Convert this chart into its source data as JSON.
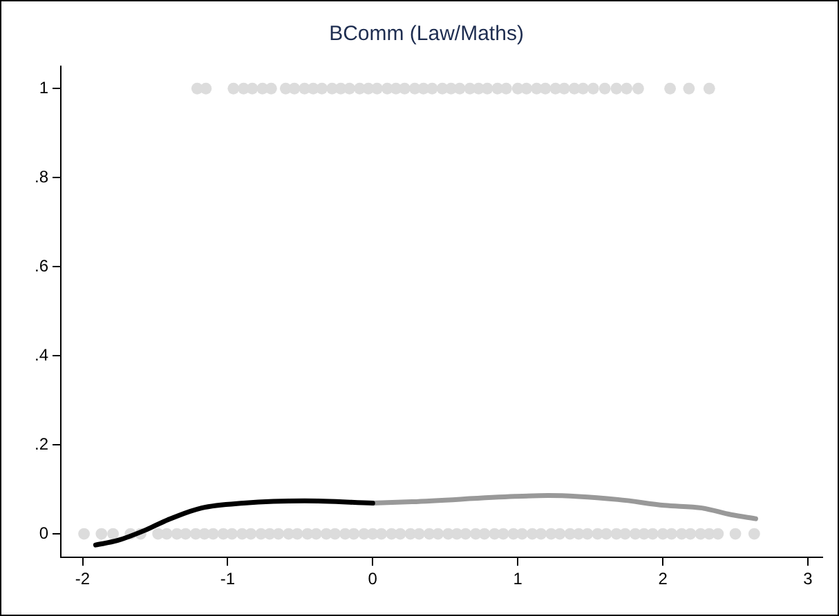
{
  "chart_data": {
    "type": "scatter",
    "title": "BComm (Law/Maths)",
    "xlim": [
      -2.15,
      3.1
    ],
    "xticks": [
      -2,
      -1,
      0,
      1,
      2,
      3
    ],
    "ylim": [
      -0.053,
      1.05
    ],
    "yticks": [
      0,
      {
        "value": 0.2,
        "label": ".2"
      },
      {
        "value": 0.4,
        "label": ".4"
      },
      {
        "value": 0.6,
        "label": ".6"
      },
      {
        "value": 0.8,
        "label": ".8"
      },
      1
    ],
    "grid": false,
    "legend": false,
    "series": [
      {
        "marker": "circle",
        "color": "#dcdcdc",
        "x": [
          -1.21,
          -1.15,
          -0.96,
          -0.89,
          -0.83,
          -0.76,
          -0.7,
          -0.6,
          -0.54,
          -0.47,
          -0.41,
          -0.35,
          -0.28,
          -0.22,
          -0.16,
          -0.09,
          -0.03,
          0.03,
          0.1,
          0.16,
          0.22,
          0.29,
          0.35,
          0.41,
          0.48,
          0.54,
          0.6,
          0.67,
          0.73,
          0.79,
          0.86,
          0.92,
          1.0,
          1.06,
          1.13,
          1.19,
          1.26,
          1.32,
          1.39,
          1.45,
          1.52,
          1.6,
          1.68,
          1.75,
          1.83,
          2.05,
          2.18,
          2.32
        ],
        "values": [
          1,
          1,
          1,
          1,
          1,
          1,
          1,
          1,
          1,
          1,
          1,
          1,
          1,
          1,
          1,
          1,
          1,
          1,
          1,
          1,
          1,
          1,
          1,
          1,
          1,
          1,
          1,
          1,
          1,
          1,
          1,
          1,
          1,
          1,
          1,
          1,
          1,
          1,
          1,
          1,
          1,
          1,
          1,
          1,
          1,
          1,
          1,
          1
        ]
      },
      {
        "marker": "circle",
        "color": "#dcdcdc",
        "x": [
          -1.99,
          -1.87,
          -1.79,
          -1.67,
          -1.6,
          -1.48,
          -1.42,
          -1.35,
          -1.29,
          -1.22,
          -1.16,
          -1.1,
          -1.03,
          -0.97,
          -0.9,
          -0.84,
          -0.77,
          -0.71,
          -0.65,
          -0.58,
          -0.52,
          -0.45,
          -0.39,
          -0.32,
          -0.26,
          -0.19,
          -0.13,
          -0.06,
          0.0,
          0.06,
          0.13,
          0.19,
          0.26,
          0.32,
          0.39,
          0.45,
          0.52,
          0.58,
          0.64,
          0.71,
          0.77,
          0.84,
          0.9,
          0.97,
          1.03,
          1.1,
          1.16,
          1.23,
          1.29,
          1.36,
          1.42,
          1.48,
          1.55,
          1.61,
          1.68,
          1.74,
          1.81,
          1.87,
          1.93,
          2.0,
          2.06,
          2.13,
          2.19,
          2.26,
          2.32,
          2.38,
          2.5,
          2.63
        ],
        "values": [
          0,
          0,
          0,
          0,
          0,
          0,
          0,
          0,
          0,
          0,
          0,
          0,
          0,
          0,
          0,
          0,
          0,
          0,
          0,
          0,
          0,
          0,
          0,
          0,
          0,
          0,
          0,
          0,
          0,
          0,
          0,
          0,
          0,
          0,
          0,
          0,
          0,
          0,
          0,
          0,
          0,
          0,
          0,
          0,
          0,
          0,
          0,
          0,
          0,
          0,
          0,
          0,
          0,
          0,
          0,
          0,
          0,
          0,
          0,
          0,
          0,
          0,
          0,
          0,
          0,
          0,
          0,
          0
        ]
      },
      {
        "type": "line",
        "marker": "none",
        "line_style": "solid",
        "color": "#000000",
        "x": [
          -1.91,
          -1.76,
          -1.57,
          -1.41,
          -1.18,
          -0.89,
          -0.47,
          0
        ],
        "values": [
          -0.025,
          -0.015,
          0.008,
          0.032,
          0.058,
          0.069,
          0.074,
          0.069
        ]
      },
      {
        "type": "line",
        "marker": "none",
        "line_style": "solid",
        "color": "#999999",
        "x": [
          0,
          0.27,
          0.98,
          1.21,
          1.69,
          2.01,
          2.27,
          2.47,
          2.64
        ],
        "values": [
          0.069,
          0.072,
          0.084,
          0.086,
          0.077,
          0.064,
          0.058,
          0.043,
          0.034
        ]
      }
    ]
  }
}
